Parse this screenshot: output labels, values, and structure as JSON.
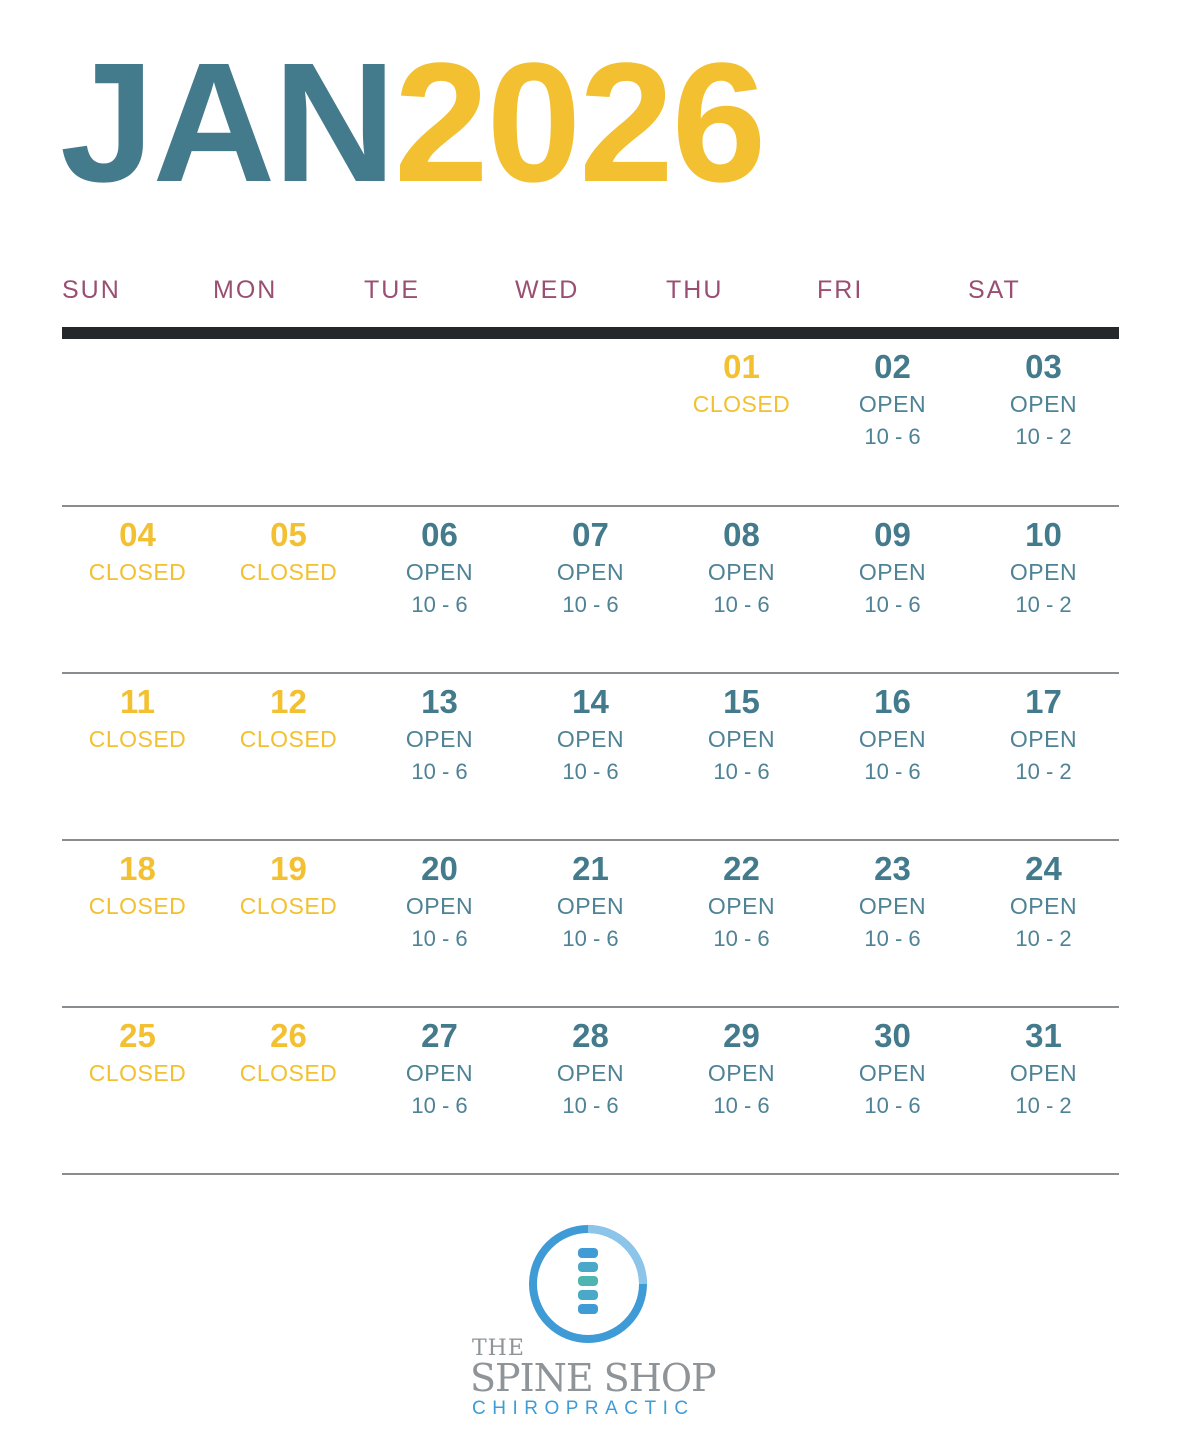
{
  "title": {
    "month": "JAN",
    "year": "2026"
  },
  "weekdays": [
    "SUN",
    "MON",
    "TUE",
    "WED",
    "THU",
    "FRI",
    "SAT"
  ],
  "colors": {
    "teal": "#437a8c",
    "yellow": "#f2c030",
    "weekday": "#9a4f72",
    "rule": "#24282b"
  },
  "weeks": [
    [
      null,
      null,
      null,
      null,
      {
        "day": "01",
        "status": "CLOSED",
        "hours": ""
      },
      {
        "day": "02",
        "status": "OPEN",
        "hours": "10 - 6"
      },
      {
        "day": "03",
        "status": "OPEN",
        "hours": "10 - 2"
      }
    ],
    [
      {
        "day": "04",
        "status": "CLOSED",
        "hours": ""
      },
      {
        "day": "05",
        "status": "CLOSED",
        "hours": ""
      },
      {
        "day": "06",
        "status": "OPEN",
        "hours": "10 - 6"
      },
      {
        "day": "07",
        "status": "OPEN",
        "hours": "10 - 6"
      },
      {
        "day": "08",
        "status": "OPEN",
        "hours": "10 - 6"
      },
      {
        "day": "09",
        "status": "OPEN",
        "hours": "10 - 6"
      },
      {
        "day": "10",
        "status": "OPEN",
        "hours": "10 - 2"
      }
    ],
    [
      {
        "day": "11",
        "status": "CLOSED",
        "hours": ""
      },
      {
        "day": "12",
        "status": "CLOSED",
        "hours": ""
      },
      {
        "day": "13",
        "status": "OPEN",
        "hours": "10 - 6"
      },
      {
        "day": "14",
        "status": "OPEN",
        "hours": "10 - 6"
      },
      {
        "day": "15",
        "status": "OPEN",
        "hours": "10 - 6"
      },
      {
        "day": "16",
        "status": "OPEN",
        "hours": "10 - 6"
      },
      {
        "day": "17",
        "status": "OPEN",
        "hours": "10 - 2"
      }
    ],
    [
      {
        "day": "18",
        "status": "CLOSED",
        "hours": ""
      },
      {
        "day": "19",
        "status": "CLOSED",
        "hours": ""
      },
      {
        "day": "20",
        "status": "OPEN",
        "hours": "10 - 6"
      },
      {
        "day": "21",
        "status": "OPEN",
        "hours": "10 - 6"
      },
      {
        "day": "22",
        "status": "OPEN",
        "hours": "10 - 6"
      },
      {
        "day": "23",
        "status": "OPEN",
        "hours": "10 - 6"
      },
      {
        "day": "24",
        "status": "OPEN",
        "hours": "10 - 2"
      }
    ],
    [
      {
        "day": "25",
        "status": "CLOSED",
        "hours": ""
      },
      {
        "day": "26",
        "status": "CLOSED",
        "hours": ""
      },
      {
        "day": "27",
        "status": "OPEN",
        "hours": "10 - 6"
      },
      {
        "day": "28",
        "status": "OPEN",
        "hours": "10 - 6"
      },
      {
        "day": "29",
        "status": "OPEN",
        "hours": "10 - 6"
      },
      {
        "day": "30",
        "status": "OPEN",
        "hours": "10 - 6"
      },
      {
        "day": "31",
        "status": "OPEN",
        "hours": "10 - 2"
      }
    ]
  ],
  "logo": {
    "the": "THE",
    "name": "SPINE SHOP",
    "sub": "CHIROPRACTIC",
    "icon": "spine-circle-icon"
  }
}
